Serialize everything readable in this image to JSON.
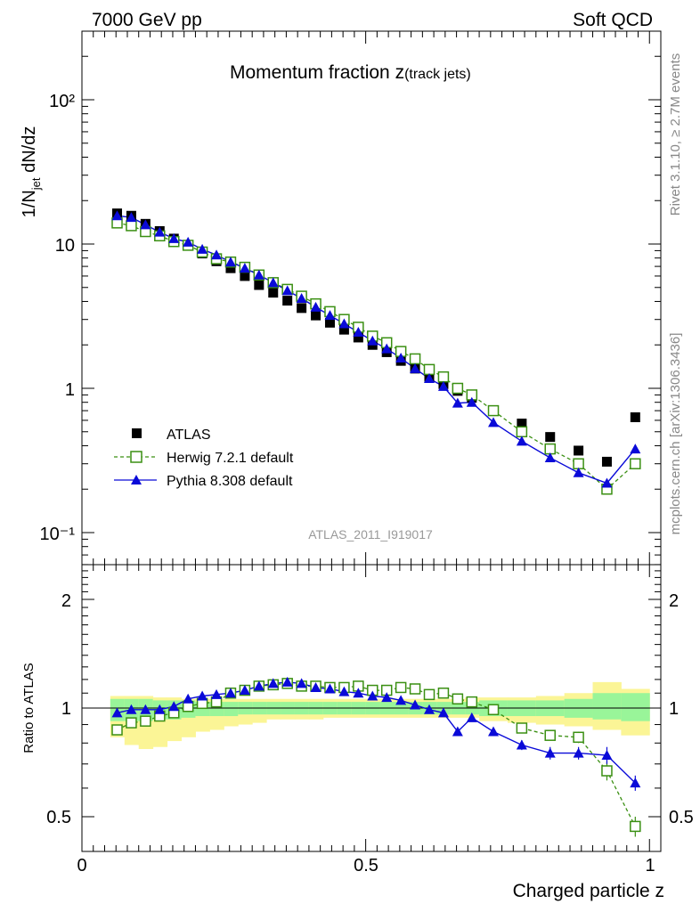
{
  "header": {
    "energy_label": "7000 GeV pp",
    "process_label": "Soft QCD"
  },
  "side": {
    "rivet_label": "Rivet 3.1.10, ≥ 2.7M events",
    "source_label": "mcplots.cern.ch [arXiv:1306.3436]"
  },
  "main_panel": {
    "title_main": "Momentum fraction z",
    "title_sub": "(track jets)",
    "ylabel_prefix": "1/N",
    "ylabel_sub": "jet",
    "ylabel_suffix": " dN/dz",
    "analysis_id": "ATLAS_2011_I919017",
    "ytick_labels": [
      "10⁻¹",
      "1",
      "10",
      "10²"
    ]
  },
  "ratio_panel": {
    "ylabel": "Ratio to ATLAS",
    "ytick_labels": [
      "0.5",
      "1",
      "2"
    ]
  },
  "xaxis": {
    "label": "Charged particle z",
    "tick_labels": [
      "0",
      "0.5",
      "1"
    ]
  },
  "legend": {
    "atlas": "ATLAS",
    "herwig": "Herwig 7.2.1 default",
    "pythia": "Pythia 8.308 default"
  },
  "colors": {
    "atlas": "#000000",
    "herwig": "#3a8f12",
    "pythia": "#0a0ad8",
    "band_inner": "#99f599",
    "band_outer": "#fbf596"
  },
  "chart_data": {
    "type": "line",
    "x": [
      0.062,
      0.087,
      0.112,
      0.137,
      0.162,
      0.187,
      0.212,
      0.237,
      0.262,
      0.287,
      0.312,
      0.337,
      0.362,
      0.387,
      0.412,
      0.437,
      0.462,
      0.487,
      0.512,
      0.537,
      0.562,
      0.587,
      0.612,
      0.637,
      0.662,
      0.687,
      0.725,
      0.775,
      0.825,
      0.875,
      0.925,
      0.975
    ],
    "xlim": [
      0,
      1.02
    ],
    "ylim_main": [
      0.05,
      300
    ],
    "ylim_ratio": [
      0.42,
      2.35
    ],
    "yscale_main": "log",
    "yscale_ratio": "log",
    "series": [
      {
        "name": "ATLAS",
        "marker": "filled-square",
        "values": [
          16.3,
          15.7,
          13.8,
          12.3,
          10.9,
          9.8,
          8.6,
          7.6,
          6.8,
          6.0,
          5.2,
          4.6,
          4.05,
          3.6,
          3.2,
          2.85,
          2.55,
          2.25,
          2.0,
          1.78,
          1.55,
          1.37,
          1.2,
          1.07,
          0.96,
          0.86,
          0.7,
          0.57,
          0.46,
          0.37,
          0.31,
          0.63
        ]
      },
      {
        "name": "Herwig 7.2.1 default",
        "marker": "open-square",
        "line": "dashed",
        "values": [
          14.0,
          13.4,
          12.2,
          11.4,
          10.4,
          9.8,
          8.8,
          7.9,
          7.5,
          6.9,
          6.1,
          5.4,
          4.85,
          4.35,
          3.85,
          3.4,
          3.0,
          2.65,
          2.3,
          2.07,
          1.8,
          1.6,
          1.35,
          1.2,
          1.0,
          0.9,
          0.7,
          0.5,
          0.38,
          0.3,
          0.2,
          0.3
        ]
      },
      {
        "name": "Pythia 8.308 default",
        "marker": "filled-triangle",
        "line": "solid",
        "values": [
          15.7,
          15.3,
          13.6,
          12.1,
          10.9,
          10.3,
          9.2,
          8.4,
          7.5,
          6.8,
          6.1,
          5.4,
          4.75,
          4.2,
          3.65,
          3.2,
          2.8,
          2.45,
          2.13,
          1.88,
          1.62,
          1.37,
          1.17,
          1.03,
          0.79,
          0.8,
          0.58,
          0.43,
          0.33,
          0.26,
          0.22,
          0.38
        ]
      }
    ],
    "ratio": {
      "herwig": [
        0.87,
        0.91,
        0.92,
        0.95,
        0.97,
        1.01,
        1.03,
        1.04,
        1.1,
        1.12,
        1.15,
        1.16,
        1.17,
        1.15,
        1.15,
        1.14,
        1.14,
        1.15,
        1.12,
        1.12,
        1.14,
        1.13,
        1.09,
        1.1,
        1.06,
        1.04,
        0.99,
        0.88,
        0.84,
        0.83,
        0.67,
        0.47
      ],
      "herwig_err": [
        0.01,
        0.01,
        0.01,
        0.01,
        0.01,
        0.01,
        0.01,
        0.01,
        0.01,
        0.01,
        0.01,
        0.01,
        0.01,
        0.01,
        0.01,
        0.01,
        0.01,
        0.01,
        0.01,
        0.01,
        0.01,
        0.01,
        0.015,
        0.015,
        0.015,
        0.015,
        0.02,
        0.02,
        0.025,
        0.03,
        0.04,
        0.03
      ],
      "pythia": [
        0.97,
        0.99,
        0.99,
        0.99,
        1.01,
        1.06,
        1.08,
        1.09,
        1.1,
        1.12,
        1.15,
        1.17,
        1.18,
        1.17,
        1.14,
        1.13,
        1.11,
        1.1,
        1.08,
        1.07,
        1.05,
        1.02,
        0.99,
        0.97,
        0.86,
        0.94,
        0.86,
        0.79,
        0.75,
        0.75,
        0.74,
        0.62
      ],
      "pythia_err": [
        0.01,
        0.01,
        0.01,
        0.01,
        0.01,
        0.01,
        0.01,
        0.01,
        0.01,
        0.01,
        0.01,
        0.01,
        0.01,
        0.01,
        0.01,
        0.01,
        0.01,
        0.01,
        0.01,
        0.01,
        0.01,
        0.01,
        0.015,
        0.015,
        0.02,
        0.02,
        0.02,
        0.025,
        0.03,
        0.03,
        0.04,
        0.03
      ],
      "band_edges": [
        0.05,
        0.075,
        0.1,
        0.125,
        0.15,
        0.175,
        0.2,
        0.225,
        0.25,
        0.275,
        0.3,
        0.325,
        0.35,
        0.375,
        0.4,
        0.425,
        0.45,
        0.475,
        0.5,
        0.525,
        0.55,
        0.575,
        0.6,
        0.625,
        0.65,
        0.675,
        0.7,
        0.75,
        0.8,
        0.85,
        0.9,
        0.95,
        1.0
      ],
      "band_inner_lo": [
        0.92,
        0.92,
        0.92,
        0.93,
        0.93,
        0.94,
        0.95,
        0.95,
        0.95,
        0.96,
        0.96,
        0.96,
        0.96,
        0.96,
        0.96,
        0.96,
        0.96,
        0.96,
        0.96,
        0.96,
        0.96,
        0.96,
        0.96,
        0.96,
        0.96,
        0.96,
        0.95,
        0.95,
        0.95,
        0.94,
        0.93,
        0.92
      ],
      "band_inner_hi": [
        1.06,
        1.06,
        1.06,
        1.05,
        1.05,
        1.05,
        1.04,
        1.04,
        1.04,
        1.04,
        1.04,
        1.04,
        1.04,
        1.04,
        1.04,
        1.04,
        1.04,
        1.04,
        1.04,
        1.04,
        1.04,
        1.04,
        1.04,
        1.04,
        1.04,
        1.04,
        1.05,
        1.05,
        1.05,
        1.06,
        1.1,
        1.1
      ],
      "band_outer_lo": [
        0.83,
        0.79,
        0.77,
        0.78,
        0.81,
        0.83,
        0.86,
        0.87,
        0.89,
        0.9,
        0.91,
        0.93,
        0.93,
        0.93,
        0.93,
        0.94,
        0.94,
        0.94,
        0.94,
        0.94,
        0.94,
        0.94,
        0.94,
        0.94,
        0.94,
        0.94,
        0.92,
        0.91,
        0.9,
        0.89,
        0.87,
        0.84
      ],
      "band_outer_hi": [
        1.08,
        1.08,
        1.08,
        1.07,
        1.07,
        1.06,
        1.06,
        1.06,
        1.06,
        1.06,
        1.06,
        1.06,
        1.06,
        1.06,
        1.06,
        1.06,
        1.06,
        1.06,
        1.06,
        1.06,
        1.06,
        1.06,
        1.06,
        1.06,
        1.06,
        1.07,
        1.07,
        1.07,
        1.08,
        1.1,
        1.18,
        1.13
      ]
    },
    "legend_position": "lower-left",
    "grid": false
  }
}
